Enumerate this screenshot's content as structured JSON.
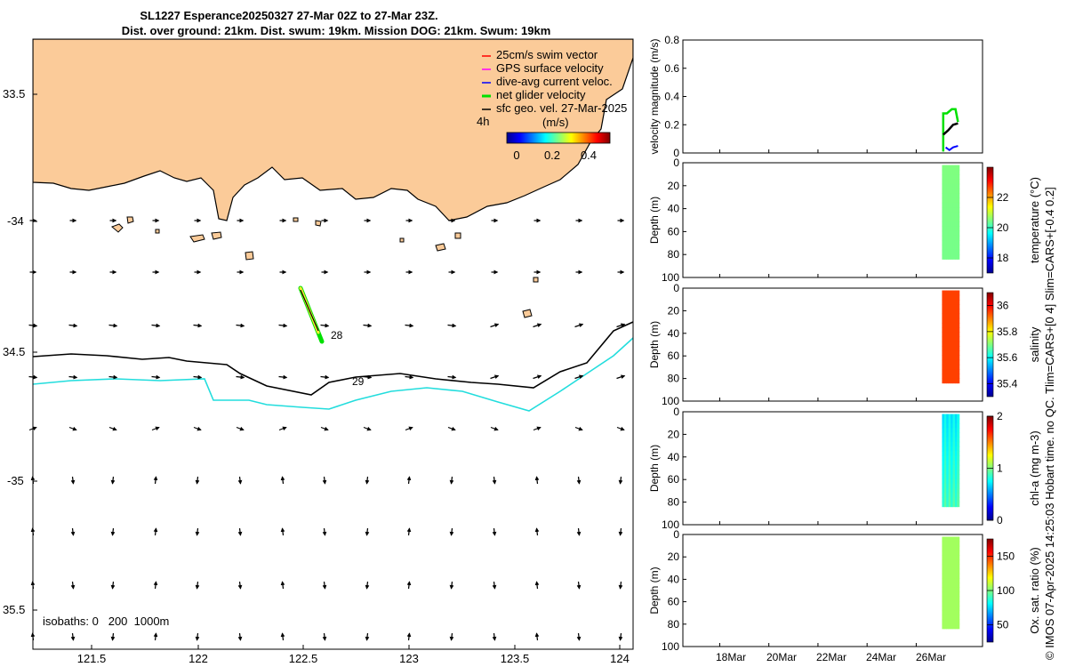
{
  "title": {
    "line1": "SL1227 Esperance20250327 27-Mar 02Z to 27-Mar 23Z.",
    "line2": "Dist. over ground: 21km. Dist. swum: 19km. Mission DOG: 21km. Swum: 19km"
  },
  "colors": {
    "land": "#fbcb99",
    "isobath_1000": "#22dddd",
    "track": "#aaff33",
    "swim_vector": "#ff0000",
    "gps_velocity": "#ff00ff",
    "current": "#0000ff",
    "net_velocity": "#00e000"
  },
  "map": {
    "legend": [
      {
        "name": "swim",
        "label": "25cm/s swim vector",
        "color": "#ff0000"
      },
      {
        "name": "gps",
        "label": "GPS surface velocity",
        "color": "#ff00ff"
      },
      {
        "name": "current",
        "label": "dive-avg current veloc.",
        "color": "#0000ff"
      },
      {
        "name": "net",
        "label": "net glider velocity",
        "color": "#00e000"
      },
      {
        "name": "geo",
        "label": "sfc geo. vel. 27-Mar-2025",
        "color": "#000000"
      }
    ],
    "time_step_label": "4h",
    "speed_colorbar": {
      "label": "(m/s)",
      "ticks": [
        "0",
        "0.2",
        "0.4"
      ]
    },
    "isobaths_note": "isobaths: 0   200  1000m",
    "track_labels": [
      "28",
      "29"
    ],
    "lon_ticks": [
      "121.5",
      "122",
      "122.5",
      "123",
      "123.5",
      "124"
    ],
    "lat_ticks": [
      "33.5",
      "-34",
      "34.5",
      "-35",
      "35.5"
    ]
  },
  "side_label": "© IMOS 07-Apr-2025 14:25:03 Hobart time. no QC. Tlim=CARS+[0 4] Slim=CARS+[-0.4 0.2]",
  "chart_data": [
    {
      "type": "line",
      "title": "velocity time series",
      "ylabel": "velocity magnitude (m/s)",
      "ylim": [
        0,
        0.8
      ],
      "yticks": [
        "0",
        "0.2",
        "0.4",
        "0.6",
        "0.8"
      ],
      "x_dates": [
        "18Mar",
        "20Mar",
        "22Mar",
        "24Mar",
        "26Mar"
      ],
      "xlim_days": [
        16.5,
        28.7
      ],
      "series": [
        {
          "name": "net glider velocity",
          "x": [
            27.1,
            27.1,
            27.25,
            27.45,
            27.6,
            27.7
          ],
          "values": [
            0.01,
            0.28,
            0.28,
            0.31,
            0.31,
            0.22
          ]
        },
        {
          "name": "sfc geo. vel.",
          "x": [
            27.1,
            27.3,
            27.5,
            27.7
          ],
          "values": [
            0.13,
            0.16,
            0.2,
            0.21
          ]
        },
        {
          "name": "dive-avg current",
          "x": [
            27.2,
            27.35,
            27.5,
            27.7
          ],
          "values": [
            0.04,
            0.02,
            0.04,
            0.05
          ]
        }
      ]
    },
    {
      "type": "heatmap",
      "ylabel": "Depth (m)",
      "ylim": [
        0,
        100
      ],
      "yticks": [
        "0",
        "20",
        "40",
        "60",
        "80",
        "100"
      ],
      "colorbar_label": "temperature (°C)",
      "clim": [
        17,
        24
      ],
      "cticks": [
        "18",
        "20",
        "22"
      ],
      "dominant_value": 20.5
    },
    {
      "type": "heatmap",
      "ylabel": "Depth (m)",
      "ylim": [
        0,
        100
      ],
      "yticks": [
        "0",
        "20",
        "40",
        "60",
        "80",
        "100"
      ],
      "colorbar_label": "salinity",
      "clim": [
        35.3,
        36.1
      ],
      "cticks": [
        "35.4",
        "35.6",
        "35.8",
        "36"
      ],
      "dominant_value": 35.95
    },
    {
      "type": "heatmap",
      "ylabel": "Depth (m)",
      "ylim": [
        0,
        100
      ],
      "yticks": [
        "0",
        "20",
        "40",
        "60",
        "80",
        "100"
      ],
      "colorbar_label": "chl-a (mg m-3)",
      "clim": [
        0,
        2
      ],
      "cticks": [
        "0",
        "1",
        "2"
      ],
      "dominant_value": 0.8
    },
    {
      "type": "heatmap",
      "ylabel": "Depth (m)",
      "ylim": [
        0,
        100
      ],
      "yticks": [
        "0",
        "20",
        "40",
        "60",
        "80",
        "100"
      ],
      "colorbar_label": "Ox. sat. ratio (%)",
      "clim": [
        25,
        175
      ],
      "cticks": [
        "50",
        "100",
        "150"
      ],
      "dominant_value": 105
    }
  ]
}
